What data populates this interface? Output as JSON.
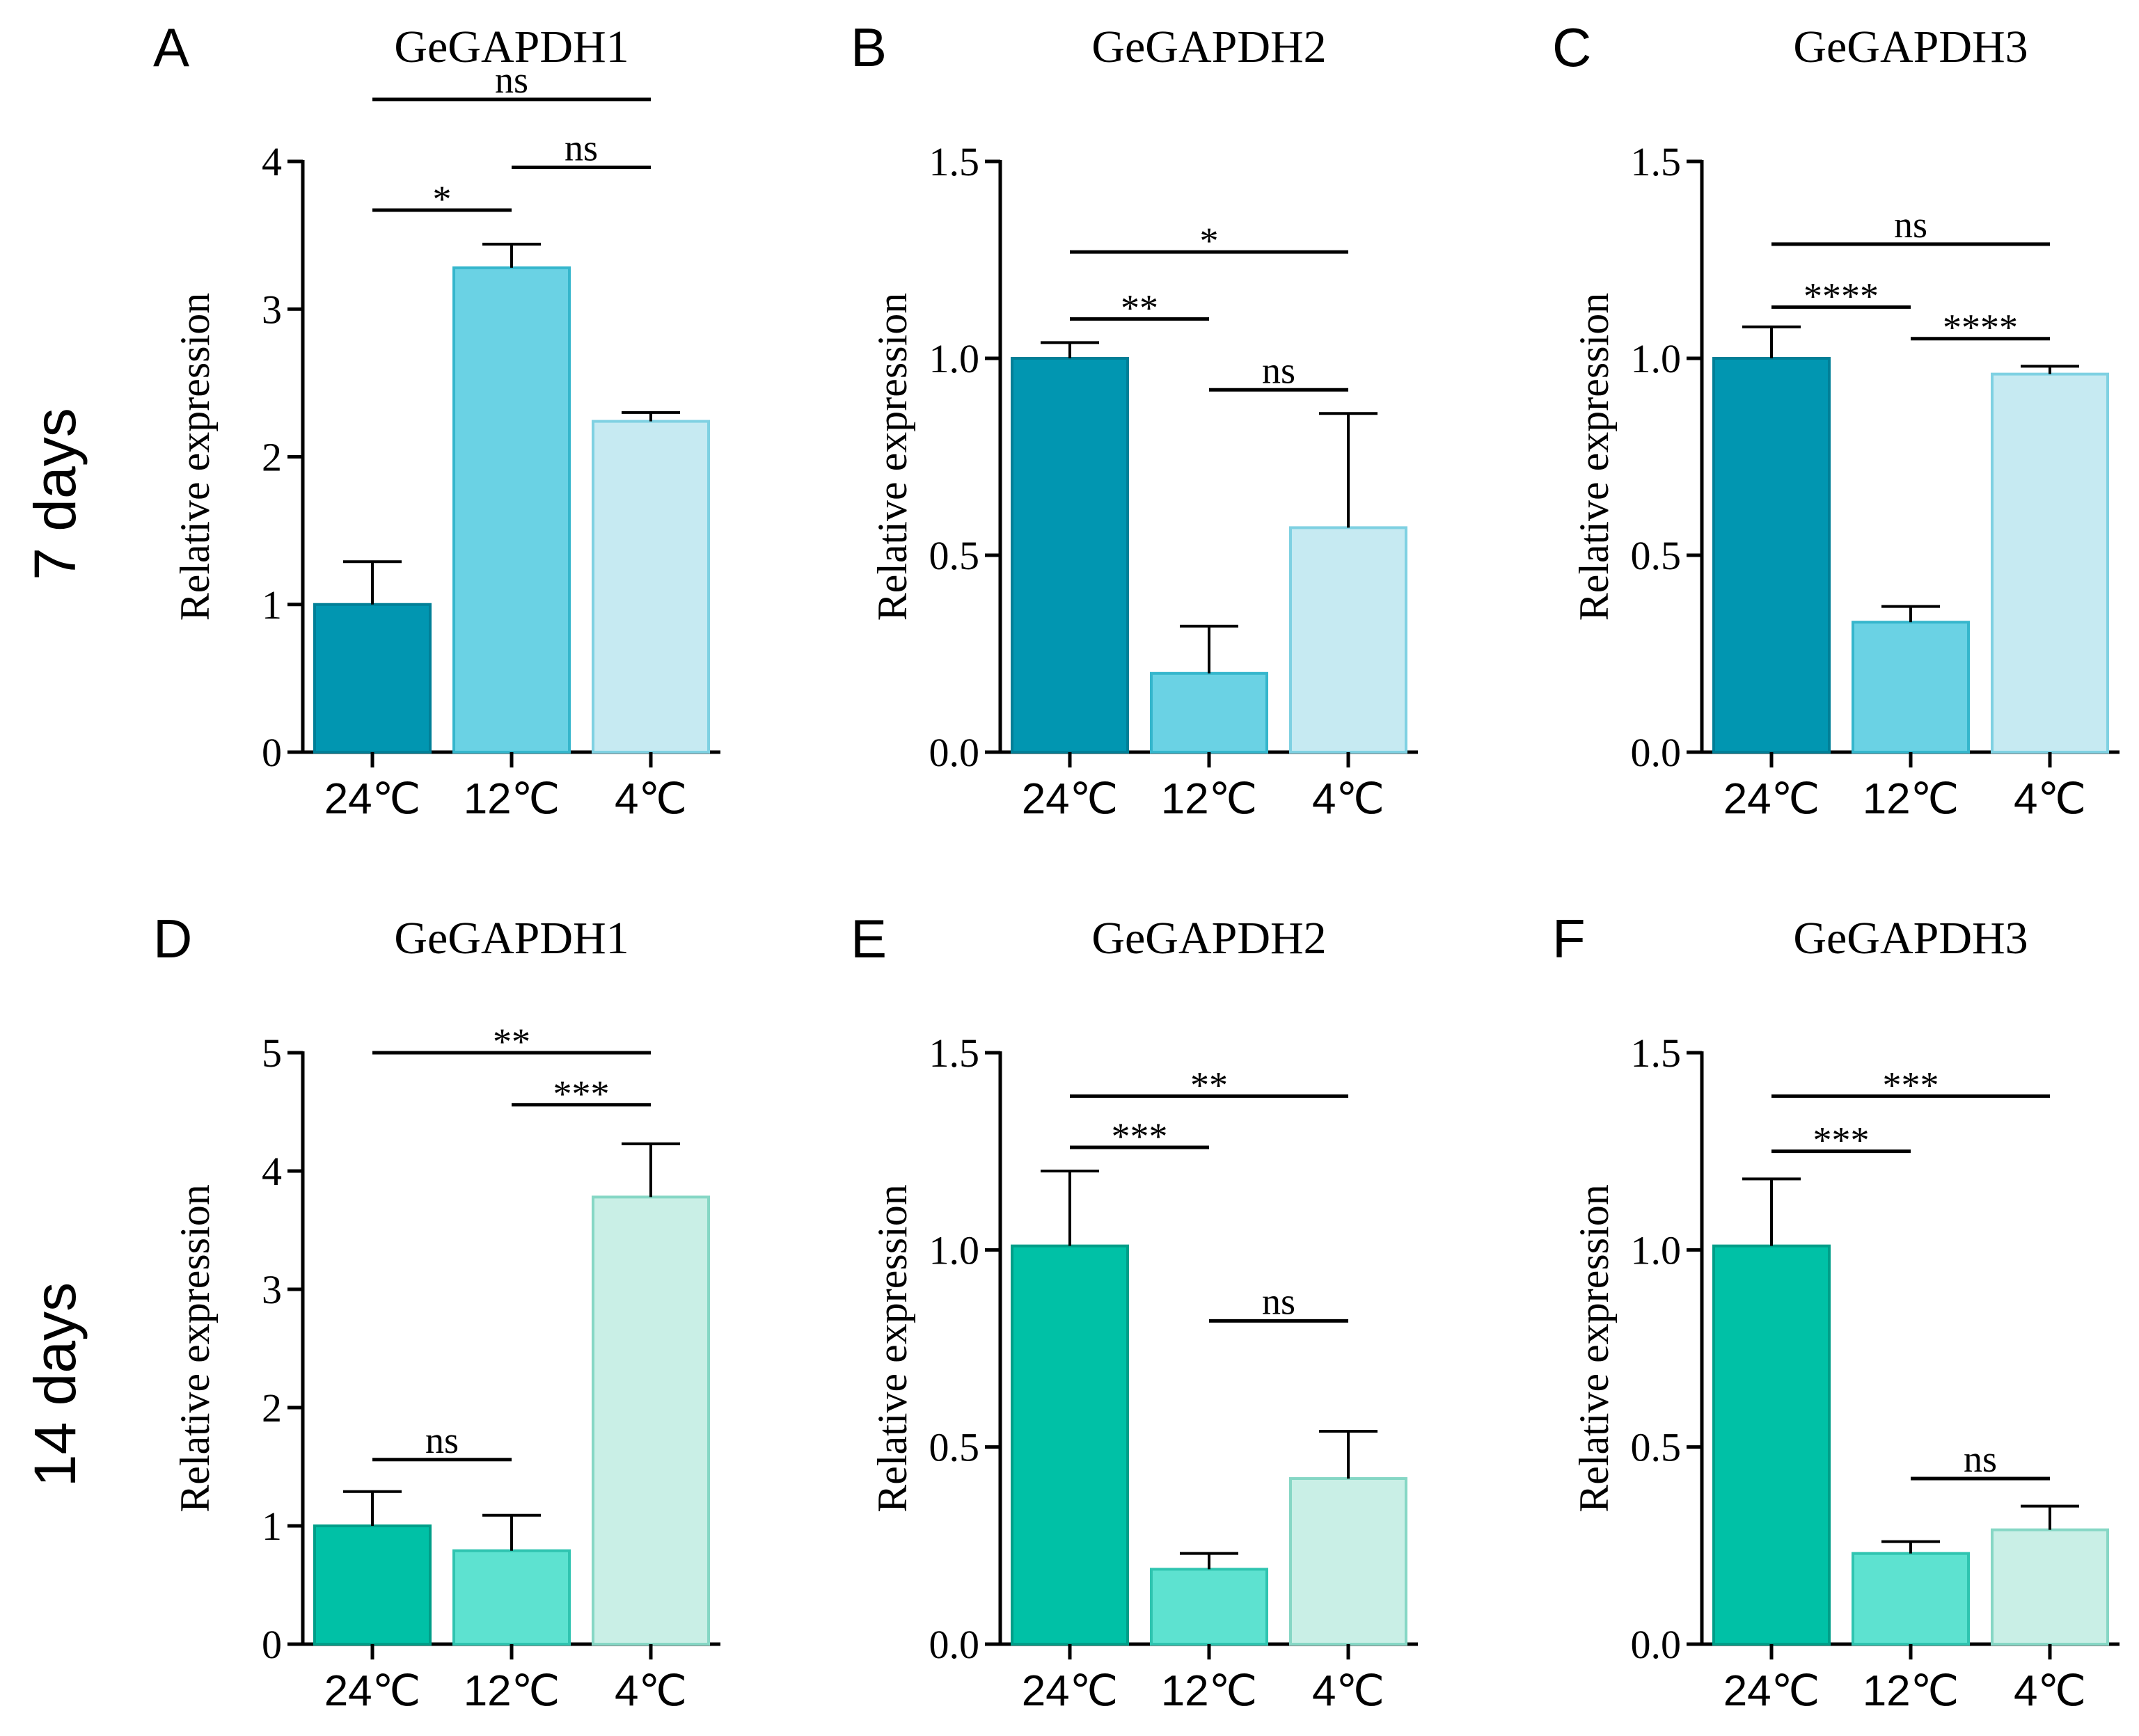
{
  "row_labels": [
    "7 days",
    "14 days"
  ],
  "chart_data": [
    {
      "panel": "A",
      "type": "bar",
      "title": "GeGAPDH1",
      "categories": [
        "24℃",
        "12℃",
        "4℃"
      ],
      "values": [
        1.0,
        3.28,
        2.24
      ],
      "errors": [
        0.29,
        0.16,
        0.06
      ],
      "ylabel": "Relative expression",
      "ylim": [
        0,
        4
      ],
      "yticks": [
        0,
        1,
        2,
        3,
        4
      ],
      "ytick_labels": [
        "0",
        "1",
        "2",
        "3",
        "4"
      ],
      "colors": [
        "#0196b1",
        "#6ad2e4",
        "#c6eaf2"
      ],
      "edge_colors": [
        "#017f97",
        "#35b6cc",
        "#7fd1e2"
      ],
      "significance": [
        {
          "from": 0,
          "to": 2,
          "label": "ns",
          "y": 4.42
        },
        {
          "from": 1,
          "to": 2,
          "label": "ns",
          "y": 3.96
        },
        {
          "from": 0,
          "to": 1,
          "label": "*",
          "y": 3.67
        }
      ]
    },
    {
      "panel": "B",
      "type": "bar",
      "title": "GeGAPDH2",
      "categories": [
        "24℃",
        "12℃",
        "4℃"
      ],
      "values": [
        1.0,
        0.2,
        0.57
      ],
      "errors": [
        0.04,
        0.12,
        0.29
      ],
      "ylabel": "Relative expression",
      "ylim": [
        0,
        1.5
      ],
      "yticks": [
        0,
        0.5,
        1.0,
        1.5
      ],
      "ytick_labels": [
        "0.0",
        "0.5",
        "1.0",
        "1.5"
      ],
      "colors": [
        "#0196b1",
        "#6ad2e4",
        "#c6eaf2"
      ],
      "edge_colors": [
        "#017f97",
        "#35b6cc",
        "#7fd1e2"
      ],
      "significance": [
        {
          "from": 0,
          "to": 2,
          "label": "*",
          "y": 1.27
        },
        {
          "from": 0,
          "to": 1,
          "label": "**",
          "y": 1.1
        },
        {
          "from": 1,
          "to": 2,
          "label": "ns",
          "y": 0.92
        }
      ]
    },
    {
      "panel": "C",
      "type": "bar",
      "title": "GeGAPDH3",
      "categories": [
        "24℃",
        "12℃",
        "4℃"
      ],
      "values": [
        1.0,
        0.33,
        0.96
      ],
      "errors": [
        0.08,
        0.04,
        0.02
      ],
      "ylabel": "Relative expression",
      "ylim": [
        0,
        1.5
      ],
      "yticks": [
        0,
        0.5,
        1.0,
        1.5
      ],
      "ytick_labels": [
        "0.0",
        "0.5",
        "1.0",
        "1.5"
      ],
      "colors": [
        "#0196b1",
        "#6ad2e4",
        "#c6eaf2"
      ],
      "edge_colors": [
        "#017f97",
        "#35b6cc",
        "#7fd1e2"
      ],
      "significance": [
        {
          "from": 0,
          "to": 2,
          "label": "ns",
          "y": 1.29
        },
        {
          "from": 0,
          "to": 1,
          "label": "****",
          "y": 1.13
        },
        {
          "from": 1,
          "to": 2,
          "label": "****",
          "y": 1.05
        }
      ]
    },
    {
      "panel": "D",
      "type": "bar",
      "title": "GeGAPDH1",
      "categories": [
        "24℃",
        "12℃",
        "4℃"
      ],
      "values": [
        1.0,
        0.79,
        3.78
      ],
      "errors": [
        0.29,
        0.3,
        0.45
      ],
      "ylabel": "Relative expression",
      "ylim": [
        0,
        5
      ],
      "yticks": [
        0,
        1,
        2,
        3,
        4,
        5
      ],
      "ytick_labels": [
        "0",
        "1",
        "2",
        "3",
        "4",
        "5"
      ],
      "colors": [
        "#00c1a6",
        "#5de2d0",
        "#c9efe6"
      ],
      "edge_colors": [
        "#009e88",
        "#2fc4b0",
        "#86d7c5"
      ],
      "significance": [
        {
          "from": 0,
          "to": 2,
          "label": "**",
          "y": 5.0
        },
        {
          "from": 1,
          "to": 2,
          "label": "***",
          "y": 4.56
        },
        {
          "from": 0,
          "to": 1,
          "label": "ns",
          "y": 1.56
        }
      ]
    },
    {
      "panel": "E",
      "type": "bar",
      "title": "GeGAPDH2",
      "categories": [
        "24℃",
        "12℃",
        "4℃"
      ],
      "values": [
        1.01,
        0.19,
        0.42
      ],
      "errors": [
        0.19,
        0.04,
        0.12
      ],
      "ylabel": "Relative expression",
      "ylim": [
        0,
        1.5
      ],
      "yticks": [
        0,
        0.5,
        1.0,
        1.5
      ],
      "ytick_labels": [
        "0.0",
        "0.5",
        "1.0",
        "1.5"
      ],
      "colors": [
        "#00c1a6",
        "#5de2d0",
        "#c9efe6"
      ],
      "edge_colors": [
        "#009e88",
        "#2fc4b0",
        "#86d7c5"
      ],
      "significance": [
        {
          "from": 0,
          "to": 2,
          "label": "**",
          "y": 1.39
        },
        {
          "from": 0,
          "to": 1,
          "label": "***",
          "y": 1.26
        },
        {
          "from": 1,
          "to": 2,
          "label": "ns",
          "y": 0.82
        }
      ]
    },
    {
      "panel": "F",
      "type": "bar",
      "title": "GeGAPDH3",
      "categories": [
        "24℃",
        "12℃",
        "4℃"
      ],
      "values": [
        1.01,
        0.23,
        0.29
      ],
      "errors": [
        0.17,
        0.03,
        0.06
      ],
      "ylabel": "Relative expression",
      "ylim": [
        0,
        1.5
      ],
      "yticks": [
        0,
        0.5,
        1.0,
        1.5
      ],
      "ytick_labels": [
        "0.0",
        "0.5",
        "1.0",
        "1.5"
      ],
      "colors": [
        "#00c1a6",
        "#5de2d0",
        "#c9efe6"
      ],
      "edge_colors": [
        "#009e88",
        "#2fc4b0",
        "#86d7c5"
      ],
      "significance": [
        {
          "from": 0,
          "to": 2,
          "label": "***",
          "y": 1.39
        },
        {
          "from": 0,
          "to": 1,
          "label": "***",
          "y": 1.25
        },
        {
          "from": 1,
          "to": 2,
          "label": "ns",
          "y": 0.42
        }
      ]
    }
  ]
}
